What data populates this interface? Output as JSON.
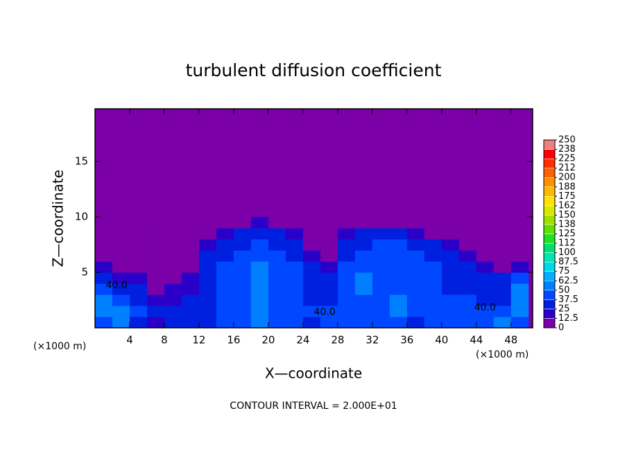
{
  "chart_data": {
    "type": "heatmap",
    "title": "turbulent diffusion coefficient",
    "x_label": "X—coordinate",
    "y_label": "Z—coordinate",
    "x_unit": "(×1000 m)",
    "x_unit_right": "(×1000 m)",
    "footer": "CONTOUR INTERVAL = 2.000E+01",
    "xlim": [
      0,
      50.5
    ],
    "ylim": [
      0,
      19.75
    ],
    "xticks": [
      4,
      8,
      12,
      16,
      20,
      24,
      28,
      32,
      36,
      40,
      44,
      48
    ],
    "yticks": [
      5,
      10,
      15
    ],
    "x": [
      1,
      3,
      5,
      7,
      9,
      11,
      13,
      15,
      17,
      19,
      21,
      23,
      25,
      27,
      29,
      31,
      33,
      35,
      37,
      39,
      41,
      43,
      45,
      47,
      49
    ],
    "y": [
      0.5,
      1.5,
      2.5,
      3.5,
      4.5,
      5.5,
      6.5,
      7.5,
      8.5,
      9.5
    ],
    "z": [
      [
        40,
        55,
        30,
        20,
        30,
        35,
        35,
        40,
        45,
        55,
        40,
        40,
        35,
        40,
        40,
        45,
        45,
        40,
        35,
        40,
        45,
        40,
        45,
        50,
        45
      ],
      [
        50,
        60,
        40,
        30,
        25,
        30,
        35,
        40,
        45,
        60,
        45,
        40,
        40,
        40,
        45,
        40,
        45,
        50,
        40,
        40,
        45,
        40,
        40,
        40,
        50
      ],
      [
        55,
        45,
        35,
        20,
        20,
        25,
        35,
        40,
        45,
        60,
        40,
        40,
        35,
        35,
        40,
        40,
        45,
        50,
        45,
        45,
        40,
        40,
        35,
        35,
        55
      ],
      [
        45,
        35,
        25,
        10,
        15,
        20,
        35,
        40,
        45,
        60,
        40,
        40,
        35,
        30,
        40,
        50,
        40,
        45,
        40,
        40,
        35,
        35,
        30,
        30,
        50
      ],
      [
        30,
        20,
        15,
        10,
        10,
        15,
        35,
        45,
        45,
        55,
        40,
        40,
        35,
        25,
        45,
        50,
        40,
        40,
        40,
        40,
        35,
        30,
        25,
        25,
        40
      ],
      [
        15,
        10,
        10,
        10,
        10,
        10,
        30,
        40,
        45,
        50,
        40,
        40,
        30,
        15,
        40,
        45,
        40,
        40,
        40,
        40,
        35,
        25,
        15,
        10,
        20
      ],
      [
        5,
        5,
        5,
        5,
        5,
        10,
        25,
        35,
        40,
        45,
        40,
        35,
        20,
        10,
        35,
        40,
        40,
        40,
        40,
        35,
        30,
        15,
        8,
        5,
        5
      ],
      [
        3,
        3,
        3,
        3,
        3,
        5,
        15,
        30,
        35,
        40,
        35,
        30,
        10,
        5,
        30,
        35,
        38,
        38,
        35,
        30,
        20,
        8,
        3,
        3,
        3
      ],
      [
        2,
        2,
        2,
        2,
        2,
        3,
        5,
        15,
        25,
        30,
        25,
        15,
        5,
        3,
        15,
        25,
        30,
        28,
        20,
        10,
        5,
        3,
        2,
        2,
        2
      ],
      [
        2,
        2,
        2,
        2,
        2,
        2,
        3,
        5,
        10,
        15,
        10,
        5,
        3,
        2,
        5,
        8,
        12,
        10,
        5,
        3,
        2,
        2,
        2,
        2,
        2
      ]
    ],
    "colorbar": {
      "ticks": [
        0,
        12.5,
        25,
        37.5,
        50,
        62.5,
        75,
        87.5,
        100,
        {
          "value": 112.5,
          "label": "112"
        },
        125,
        {
          "value": 137.5,
          "label": "138"
        },
        150,
        {
          "value": 162.5,
          "label": "162"
        },
        175,
        {
          "value": 187.5,
          "label": "188"
        },
        200,
        {
          "value": 212.5,
          "label": "212"
        },
        225,
        {
          "value": 237.5,
          "label": "238"
        },
        250
      ],
      "colors": [
        "#7b00a8",
        "#2a00c8",
        "#0020e0",
        "#0048ff",
        "#0080ff",
        "#00b0ff",
        "#00d8e8",
        "#00e8b0",
        "#00e070",
        "#20e020",
        "#60e000",
        "#a0e000",
        "#d8e800",
        "#ffe000",
        "#ffb800",
        "#ff9000",
        "#ff6000",
        "#ff3000",
        "#ff0000",
        "#f08080"
      ]
    },
    "annotations": [
      {
        "text": "40.0",
        "x": 26.5,
        "y": 1.4
      },
      {
        "text": "40.0",
        "x": 2.5,
        "y": 3.8
      },
      {
        "text": "40.0",
        "x": 45,
        "y": 1.8
      }
    ]
  }
}
